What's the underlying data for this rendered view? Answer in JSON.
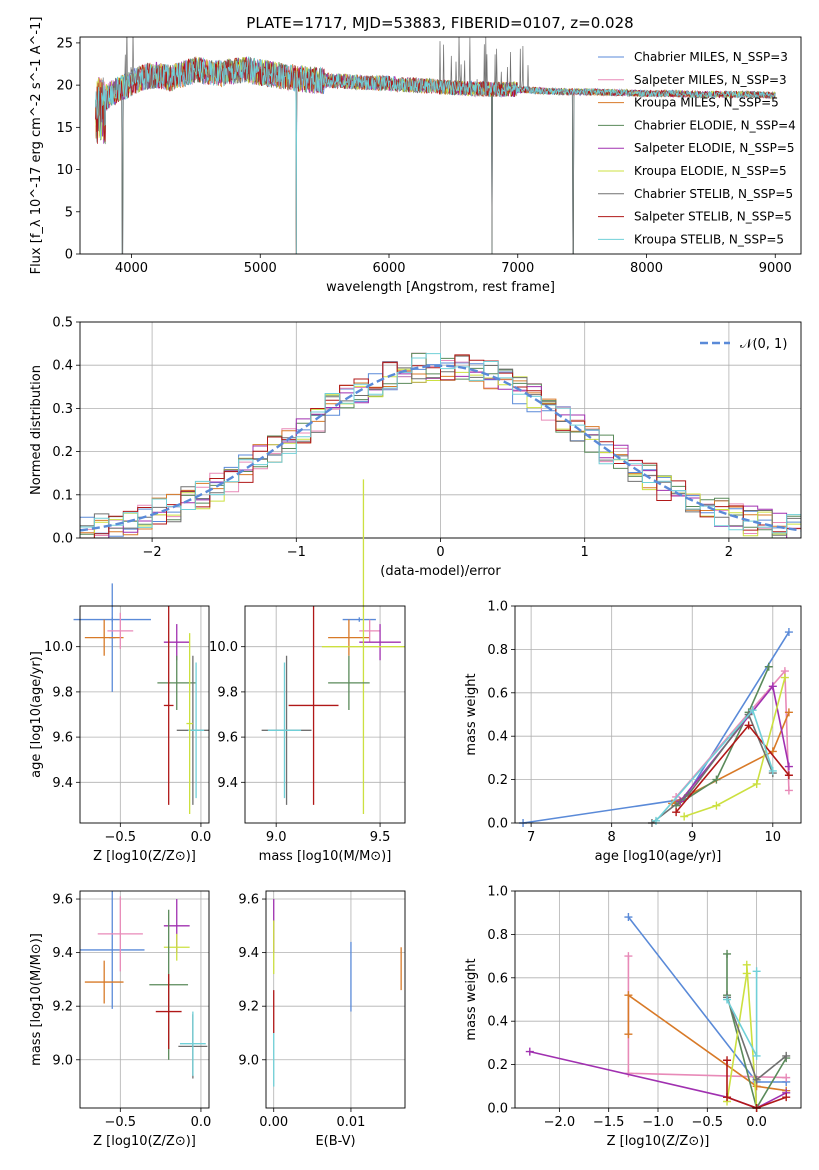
{
  "figure_title": "PLATE=1717, MJD=53883, FIBERID=0107, z=0.028",
  "colors": {
    "chabrier_miles": "#5a8ad8",
    "salpeter_miles": "#e88ab8",
    "kroupa_miles": "#d87a28",
    "chabrier_elodie": "#5a8a5a",
    "salpeter_elodie": "#a030b0",
    "kroupa_elodie": "#cce040",
    "chabrier_stelib": "#707070",
    "salpeter_stelib": "#b01818",
    "kroupa_stelib": "#70d0d8"
  },
  "chart_data": [
    {
      "id": "spectrum",
      "type": "line",
      "xlabel": "wavelength [Angstrom, rest frame]",
      "ylabel": "Flux [f_λ 10^-17 erg cm^-2 s^-1 A^-1]",
      "xlim": [
        3600,
        9200
      ],
      "ylim": [
        0,
        25.7
      ],
      "xticks": [
        "4000",
        "5000",
        "6000",
        "7000",
        "8000",
        "9000"
      ],
      "yticks": [
        "0",
        "5",
        "10",
        "15",
        "20",
        "25"
      ],
      "grid": false,
      "legend_position": "top-right",
      "legend": [
        "Chabrier MILES, N_SSP=3",
        "Salpeter MILES, N_SSP=3",
        "Kroupa MILES, N_SSP=5",
        "Chabrier ELODIE, N_SSP=4",
        "Salpeter ELODIE, N_SSP=5",
        "Kroupa ELODIE, N_SSP=5",
        "Chabrier STELIB, N_SSP=5",
        "Salpeter STELIB, N_SSP=5",
        "Kroupa STELIB, N_SSP=5"
      ],
      "x": [
        3720,
        3760,
        3800,
        3850,
        3900,
        3950,
        4000,
        4100,
        4200,
        4300,
        4400,
        4500,
        4600,
        4700,
        4800,
        4900,
        5000,
        5200,
        5400,
        5600,
        5800,
        6000,
        6200,
        6400,
        6600,
        6800,
        7000,
        7200,
        7400,
        7600,
        7800,
        8000,
        8200,
        8400,
        8600,
        8800,
        9000
      ],
      "y": [
        17.5,
        18,
        18.5,
        19,
        19.5,
        19.8,
        20.3,
        21,
        21.2,
        20.8,
        21.3,
        21.8,
        21.6,
        21.4,
        21.7,
        21.8,
        21.5,
        21,
        20.6,
        20.5,
        20.3,
        20.2,
        20,
        19.8,
        19.6,
        19.5,
        19.5,
        19.3,
        19.2,
        19.2,
        19.1,
        19.0,
        19.0,
        18.9,
        18.9,
        18.9,
        18.8
      ],
      "dips": [
        {
          "x": 3930,
          "y": 0
        },
        {
          "x": 5280,
          "y": 0
        },
        {
          "x": 6800,
          "y": 0
        },
        {
          "x": 7430,
          "y": 0
        }
      ]
    },
    {
      "id": "residuals",
      "type": "line",
      "xlabel": "(data-model)/error",
      "ylabel": "Normed distribution",
      "xlim": [
        -2.5,
        2.5
      ],
      "ylim": [
        0,
        0.5
      ],
      "xticks": [
        "−2",
        "−1",
        "0",
        "1",
        "2"
      ],
      "yticks": [
        "0.0",
        "0.1",
        "0.2",
        "0.3",
        "0.4",
        "0.5"
      ],
      "grid": true,
      "legend_position": "top-right",
      "legend": [
        "𝒩(0, 1)"
      ],
      "curve": "gaussian mean 0 sigma 1",
      "bin_width": 0.1
    },
    {
      "id": "age_vs_Z",
      "type": "scatter",
      "xlabel": "Z [log10(Z/Z⊙)]",
      "ylabel": "age  [log10(age/yr)]",
      "xlim": [
        -0.75,
        0.05
      ],
      "ylim": [
        9.22,
        10.18
      ],
      "xticks": [
        "−0.5",
        "0.0"
      ],
      "yticks": [
        "9.4",
        "9.6",
        "9.8",
        "10.0"
      ],
      "grid": true,
      "points": [
        {
          "x": -0.55,
          "y": 10.12,
          "xerr": 0.24,
          "yerr": 0.01,
          "color": "chabrier_miles"
        },
        {
          "x": -0.55,
          "y": 10.04,
          "xerr": 0.02,
          "yerr": 0.24,
          "color": "chabrier_miles"
        },
        {
          "x": -0.6,
          "y": 10.04,
          "xerr": 0.12,
          "yerr": 0.08,
          "color": "kroupa_miles"
        },
        {
          "x": -0.5,
          "y": 10.07,
          "xerr": 0.08,
          "yerr": 0.08,
          "color": "salpeter_miles"
        },
        {
          "x": -0.15,
          "y": 10.02,
          "xerr": 0.08,
          "yerr": 0.08,
          "color": "salpeter_elodie"
        },
        {
          "x": -0.15,
          "y": 9.84,
          "xerr": 0.12,
          "yerr": 0.12,
          "color": "chabrier_elodie"
        },
        {
          "x": -0.2,
          "y": 9.74,
          "xerr": 0.03,
          "yerr": 0.44,
          "color": "salpeter_stelib"
        },
        {
          "x": -0.05,
          "y": 9.63,
          "xerr": 0.1,
          "yerr": 0.33,
          "color": "chabrier_stelib"
        },
        {
          "x": -0.03,
          "y": 9.63,
          "xerr": 0.05,
          "yerr": 0.3,
          "color": "kroupa_stelib"
        },
        {
          "x": -0.07,
          "y": 9.66,
          "xerr": 0.02,
          "yerr": 0.4,
          "color": "kroupa_elodie"
        }
      ]
    },
    {
      "id": "age_vs_mass",
      "type": "scatter",
      "xlabel": "mass [log10(M/M⊙)]",
      "ylabel": "",
      "xlim": [
        8.85,
        9.62
      ],
      "ylim": [
        9.22,
        10.18
      ],
      "xticks": [
        "9.0",
        "9.5"
      ],
      "yticks": [
        "9.4",
        "9.6",
        "9.8",
        "10.0"
      ],
      "grid": true,
      "points": [
        {
          "x": 9.4,
          "y": 10.12,
          "xerr": 0.08,
          "yerr": 0.01,
          "color": "chabrier_miles"
        },
        {
          "x": 9.35,
          "y": 10.04,
          "xerr": 0.1,
          "yerr": 0.08,
          "color": "kroupa_miles"
        },
        {
          "x": 9.45,
          "y": 10.07,
          "xerr": 0.05,
          "yerr": 0.05,
          "color": "salpeter_miles"
        },
        {
          "x": 9.5,
          "y": 10.02,
          "xerr": 0.1,
          "yerr": 0.08,
          "color": "salpeter_elodie"
        },
        {
          "x": 9.42,
          "y": 10.0,
          "xerr": 0.2,
          "yerr": 0.74,
          "color": "kroupa_elodie"
        },
        {
          "x": 9.35,
          "y": 9.84,
          "xerr": 0.1,
          "yerr": 0.12,
          "color": "chabrier_elodie"
        },
        {
          "x": 9.18,
          "y": 9.74,
          "xerr": 0.12,
          "yerr": 0.44,
          "color": "salpeter_stelib"
        },
        {
          "x": 9.05,
          "y": 9.63,
          "xerr": 0.12,
          "yerr": 0.33,
          "color": "chabrier_stelib"
        },
        {
          "x": 9.04,
          "y": 9.63,
          "xerr": 0.08,
          "yerr": 0.3,
          "color": "kroupa_stelib"
        }
      ]
    },
    {
      "id": "mass_weight_vs_age",
      "type": "line",
      "xlabel": "age  [log10(age/yr)]",
      "ylabel": "mass weight",
      "xlim": [
        6.8,
        10.35
      ],
      "ylim": [
        0,
        1.0
      ],
      "xticks": [
        "7",
        "8",
        "9",
        "10"
      ],
      "yticks": [
        "0.0",
        "0.2",
        "0.4",
        "0.6",
        "0.8",
        "1.0"
      ],
      "grid": true,
      "series": [
        {
          "color": "chabrier_miles",
          "x": [
            6.9,
            8.9,
            10.2
          ],
          "y": [
            0.0,
            0.11,
            0.88
          ]
        },
        {
          "color": "salpeter_miles",
          "x": [
            8.8,
            10.15,
            10.2
          ],
          "y": [
            0.12,
            0.7,
            0.15
          ]
        },
        {
          "color": "kroupa_miles",
          "x": [
            8.75,
            10.0,
            10.2
          ],
          "y": [
            0.09,
            0.33,
            0.51
          ]
        },
        {
          "color": "chabrier_elodie",
          "x": [
            8.8,
            9.3,
            9.7,
            9.95
          ],
          "y": [
            0.08,
            0.2,
            0.51,
            0.72
          ]
        },
        {
          "color": "salpeter_elodie",
          "x": [
            8.85,
            10.0,
            10.2
          ],
          "y": [
            0.1,
            0.63,
            0.26
          ]
        },
        {
          "color": "kroupa_elodie",
          "x": [
            8.9,
            9.3,
            9.8,
            10.15
          ],
          "y": [
            0.03,
            0.08,
            0.18,
            0.67
          ]
        },
        {
          "color": "chabrier_stelib",
          "x": [
            8.5,
            8.95,
            9.7,
            10.0
          ],
          "y": [
            0.0,
            0.13,
            0.5,
            0.23
          ]
        },
        {
          "color": "salpeter_stelib",
          "x": [
            8.8,
            9.7,
            10.2
          ],
          "y": [
            0.05,
            0.45,
            0.22
          ]
        },
        {
          "color": "kroupa_stelib",
          "x": [
            8.55,
            9.75,
            10.0
          ],
          "y": [
            0.01,
            0.52,
            0.24
          ]
        }
      ]
    },
    {
      "id": "mass_vs_Z",
      "type": "scatter",
      "xlabel": "Z [log10(Z/Z⊙)]",
      "ylabel": "mass [log10(M/M⊙)]",
      "xlim": [
        -0.75,
        0.05
      ],
      "ylim": [
        8.82,
        9.63
      ],
      "xticks": [
        "−0.5",
        "0.0"
      ],
      "yticks": [
        "9.0",
        "9.2",
        "9.4",
        "9.6"
      ],
      "grid": true,
      "points": [
        {
          "x": -0.55,
          "y": 9.41,
          "xerr": 0.2,
          "yerr": 0.22,
          "color": "chabrier_miles"
        },
        {
          "x": -0.5,
          "y": 9.47,
          "xerr": 0.14,
          "yerr": 0.14,
          "color": "salpeter_miles"
        },
        {
          "x": -0.6,
          "y": 9.29,
          "xerr": 0.12,
          "yerr": 0.08,
          "color": "kroupa_miles"
        },
        {
          "x": -0.15,
          "y": 9.5,
          "xerr": 0.08,
          "yerr": 0.1,
          "color": "salpeter_elodie"
        },
        {
          "x": -0.15,
          "y": 9.42,
          "xerr": 0.08,
          "yerr": 0.05,
          "color": "kroupa_elodie"
        },
        {
          "x": -0.2,
          "y": 9.28,
          "xerr": 0.12,
          "yerr": 0.28,
          "color": "chabrier_elodie"
        },
        {
          "x": -0.2,
          "y": 9.18,
          "xerr": 0.08,
          "yerr": 0.14,
          "color": "salpeter_stelib"
        },
        {
          "x": -0.05,
          "y": 9.05,
          "xerr": 0.09,
          "yerr": 0.12,
          "color": "chabrier_stelib"
        },
        {
          "x": -0.05,
          "y": 9.06,
          "xerr": 0.08,
          "yerr": 0.12,
          "color": "kroupa_stelib"
        }
      ]
    },
    {
      "id": "mass_vs_ebv",
      "type": "scatter",
      "xlabel": "E(B-V)",
      "ylabel": "",
      "xlim": [
        -0.001,
        0.017
      ],
      "ylim": [
        8.82,
        9.63
      ],
      "xticks": [
        "0.00",
        "0.01"
      ],
      "yticks": [
        "9.0",
        "9.2",
        "9.4",
        "9.6"
      ],
      "grid": true,
      "points": [
        {
          "x": 0.0,
          "y": 9.5,
          "xerr": 0,
          "yerr": 0.1,
          "color": "salpeter_elodie"
        },
        {
          "x": 0.0,
          "y": 9.42,
          "xerr": 0,
          "yerr": 0.1,
          "color": "kroupa_elodie"
        },
        {
          "x": 0.0,
          "y": 9.18,
          "xerr": 0,
          "yerr": 0.08,
          "color": "salpeter_stelib"
        },
        {
          "x": 0.0,
          "y": 9.0,
          "xerr": 0,
          "yerr": 0.1,
          "color": "kroupa_stelib"
        },
        {
          "x": 0.01,
          "y": 9.31,
          "xerr": 0,
          "yerr": 0.13,
          "color": "chabrier_miles"
        },
        {
          "x": 0.0165,
          "y": 9.34,
          "xerr": 0,
          "yerr": 0.08,
          "color": "kroupa_miles"
        }
      ]
    },
    {
      "id": "mass_weight_vs_Z",
      "type": "line",
      "xlabel": "Z [log10(Z/Z⊙)]",
      "ylabel": "mass weight",
      "xlim": [
        -2.45,
        0.45
      ],
      "ylim": [
        0,
        1.0
      ],
      "xticks": [
        "−2.0",
        "−1.5",
        "−1.0",
        "−0.5",
        "0.0"
      ],
      "yticks": [
        "0.0",
        "0.2",
        "0.4",
        "0.6",
        "0.8",
        "1.0"
      ],
      "grid": true,
      "series": [
        {
          "color": "chabrier_miles",
          "x": [
            -1.3,
            0.0,
            0.3
          ],
          "y": [
            0.88,
            0.12,
            0.12
          ]
        },
        {
          "color": "salpeter_miles",
          "x": [
            -1.3,
            -1.3,
            0.3
          ],
          "y": [
            0.7,
            0.16,
            0.14
          ]
        },
        {
          "color": "kroupa_miles",
          "x": [
            -1.3,
            -1.3,
            0.0,
            0.3
          ],
          "y": [
            0.34,
            0.52,
            0.1,
            0.08
          ]
        },
        {
          "color": "chabrier_elodie",
          "x": [
            -0.3,
            -0.3,
            0.0,
            0.3
          ],
          "y": [
            0.71,
            0.52,
            0.0,
            0.23
          ]
        },
        {
          "color": "salpeter_elodie",
          "x": [
            -2.3,
            -0.3,
            0.0,
            0.3
          ],
          "y": [
            0.26,
            0.05,
            0.0,
            0.07
          ]
        },
        {
          "color": "kroupa_elodie",
          "x": [
            -0.3,
            -0.1,
            -0.1,
            0.0
          ],
          "y": [
            0.03,
            0.62,
            0.66,
            0.0
          ]
        },
        {
          "color": "chabrier_stelib",
          "x": [
            -0.3,
            0.0,
            0.3
          ],
          "y": [
            0.51,
            0.13,
            0.24
          ]
        },
        {
          "color": "salpeter_stelib",
          "x": [
            -0.3,
            -0.3,
            0.0,
            0.3
          ],
          "y": [
            0.22,
            0.05,
            0.0,
            0.05
          ]
        },
        {
          "color": "kroupa_stelib",
          "x": [
            -0.3,
            0.0,
            0.0
          ],
          "y": [
            0.5,
            0.24,
            0.63
          ]
        }
      ]
    }
  ]
}
